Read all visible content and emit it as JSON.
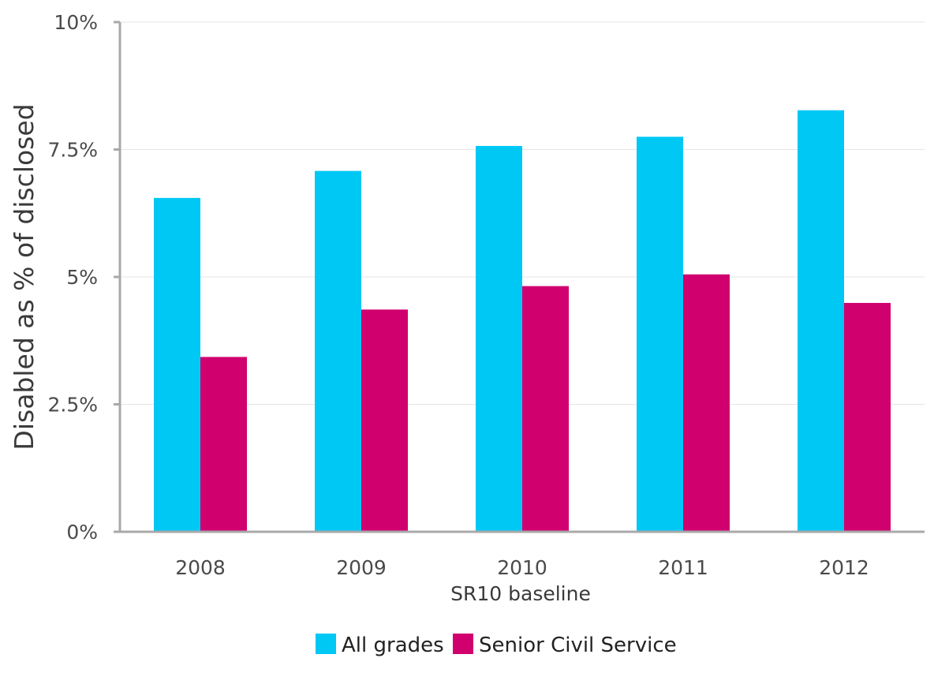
{
  "chart_data": {
    "type": "bar",
    "title": "",
    "xlabel": "SR10 baseline",
    "ylabel": "Disabled as % of disclosed",
    "categories": [
      "2008",
      "2009",
      "2010",
      "2011",
      "2012"
    ],
    "series": [
      {
        "name": "All grades",
        "color": "#00c8f5",
        "values": [
          6.55,
          7.08,
          7.57,
          7.75,
          8.27
        ]
      },
      {
        "name": "Senior Civil Service",
        "color": "#d0006f",
        "values": [
          3.43,
          4.36,
          4.82,
          5.05,
          4.49
        ]
      }
    ],
    "ylim": [
      0,
      10
    ],
    "yticks": [
      0,
      2.5,
      5,
      7.5,
      10
    ],
    "ytick_labels": [
      "0%",
      "2.5%",
      "5%",
      "7.5%",
      "10%"
    ],
    "grid": true,
    "legend_position": "bottom"
  }
}
